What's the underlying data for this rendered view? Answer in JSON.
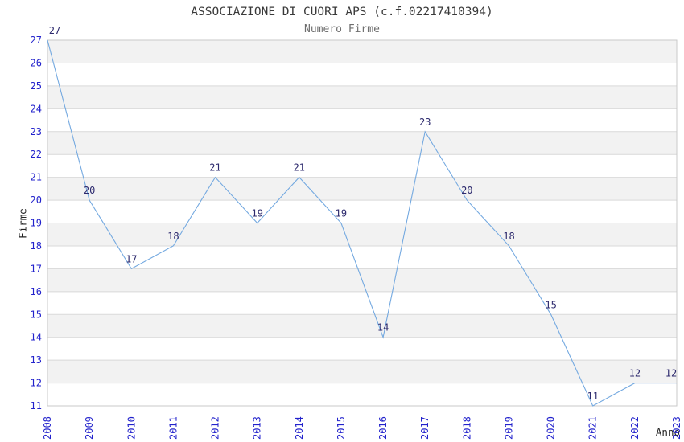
{
  "chart_data": {
    "type": "line",
    "title": "ASSOCIAZIONE DI CUORI APS (c.f.02217410394)",
    "subtitle": "Numero Firme",
    "xlabel": "Anno",
    "ylabel": "Firme",
    "x": [
      2008,
      2009,
      2010,
      2011,
      2012,
      2013,
      2014,
      2015,
      2016,
      2017,
      2018,
      2019,
      2020,
      2021,
      2022,
      2023
    ],
    "series": [
      {
        "name": "Numero Firme",
        "values": [
          27,
          20,
          17,
          18,
          21,
          19,
          21,
          19,
          14,
          23,
          20,
          18,
          15,
          11,
          12,
          12
        ]
      }
    ],
    "ylim": [
      11,
      27
    ],
    "yticks": [
      11,
      12,
      13,
      14,
      15,
      16,
      17,
      18,
      19,
      20,
      21,
      22,
      23,
      24,
      25,
      26,
      27
    ],
    "grid": "horizontal",
    "banded_rows": true,
    "show_point_labels": true,
    "legend": "none",
    "markers": "none",
    "colors": {
      "line": "#74a9e0",
      "tick_label": "#2222cc",
      "point_label": "#2d2a6e",
      "band": "#f2f2f2",
      "grid": "#d9d9d9",
      "border": "#c9c9c9",
      "title": "#3a3a3a",
      "subtitle": "#6e6e6e",
      "axis_label": "#222222"
    }
  }
}
